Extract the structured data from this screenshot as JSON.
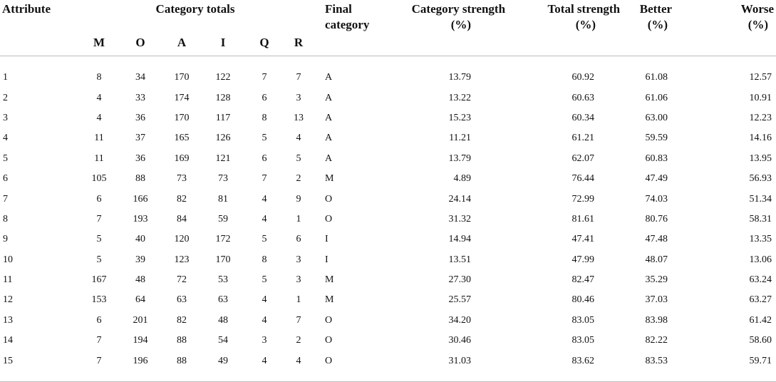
{
  "headers": {
    "attribute": "Attribute",
    "category_totals": "Category totals",
    "final_category_line1": "Final",
    "final_category_line2": "category",
    "category_strength_line1": "Category strength",
    "category_strength_line2": "(%)",
    "total_strength_line1": "Total strength",
    "total_strength_line2": "(%)",
    "better_line1": "Better",
    "better_line2": "(%)",
    "worse_line1": "Worse",
    "worse_line2": "(%)",
    "sub": [
      "M",
      "O",
      "A",
      "I",
      "Q",
      "R"
    ]
  },
  "rows": [
    [
      "1",
      "8",
      "34",
      "170",
      "122",
      "7",
      "7",
      "A",
      "13.79",
      "60.92",
      "61.08",
      "12.57"
    ],
    [
      "2",
      "4",
      "33",
      "174",
      "128",
      "6",
      "3",
      "A",
      "13.22",
      "60.63",
      "61.06",
      "10.91"
    ],
    [
      "3",
      "4",
      "36",
      "170",
      "117",
      "8",
      "13",
      "A",
      "15.23",
      "60.34",
      "63.00",
      "12.23"
    ],
    [
      "4",
      "11",
      "37",
      "165",
      "126",
      "5",
      "4",
      "A",
      "11.21",
      "61.21",
      "59.59",
      "14.16"
    ],
    [
      "5",
      "11",
      "36",
      "169",
      "121",
      "6",
      "5",
      "A",
      "13.79",
      "62.07",
      "60.83",
      "13.95"
    ],
    [
      "6",
      "105",
      "88",
      "73",
      "73",
      "7",
      "2",
      "M",
      "4.89",
      "76.44",
      "47.49",
      "56.93"
    ],
    [
      "7",
      "6",
      "166",
      "82",
      "81",
      "4",
      "9",
      "O",
      "24.14",
      "72.99",
      "74.03",
      "51.34"
    ],
    [
      "8",
      "7",
      "193",
      "84",
      "59",
      "4",
      "1",
      "O",
      "31.32",
      "81.61",
      "80.76",
      "58.31"
    ],
    [
      "9",
      "5",
      "40",
      "120",
      "172",
      "5",
      "6",
      "I",
      "14.94",
      "47.41",
      "47.48",
      "13.35"
    ],
    [
      "10",
      "5",
      "39",
      "123",
      "170",
      "8",
      "3",
      "I",
      "13.51",
      "47.99",
      "48.07",
      "13.06"
    ],
    [
      "11",
      "167",
      "48",
      "72",
      "53",
      "5",
      "3",
      "M",
      "27.30",
      "82.47",
      "35.29",
      "63.24"
    ],
    [
      "12",
      "153",
      "64",
      "63",
      "63",
      "4",
      "1",
      "M",
      "25.57",
      "80.46",
      "37.03",
      "63.27"
    ],
    [
      "13",
      "6",
      "201",
      "82",
      "48",
      "4",
      "7",
      "O",
      "34.20",
      "83.05",
      "83.98",
      "61.42"
    ],
    [
      "14",
      "7",
      "194",
      "88",
      "54",
      "3",
      "2",
      "O",
      "30.46",
      "83.05",
      "82.22",
      "58.60"
    ],
    [
      "15",
      "7",
      "196",
      "88",
      "49",
      "4",
      "4",
      "O",
      "31.03",
      "83.62",
      "83.53",
      "59.71"
    ]
  ]
}
